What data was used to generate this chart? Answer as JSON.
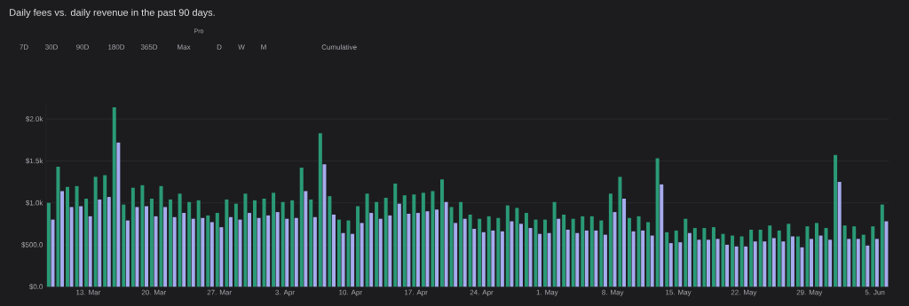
{
  "chart_data": {
    "type": "bar",
    "title": "Daily fees vs. daily revenue in the past 90 days.",
    "annotations": [
      "7D",
      "30D",
      "90D",
      "180D",
      "365D",
      "Max",
      "Pro",
      "D",
      "W",
      "M",
      "Cumulative"
    ],
    "categories": [
      null,
      null,
      null,
      null,
      "13. Mar",
      null,
      null,
      null,
      null,
      null,
      null,
      "20. Mar",
      null,
      null,
      null,
      null,
      null,
      null,
      "27. Mar",
      null,
      null,
      null,
      null,
      null,
      null,
      "3. Apr",
      null,
      null,
      null,
      null,
      null,
      null,
      "10. Apr",
      null,
      null,
      null,
      null,
      null,
      null,
      "17. Apr",
      null,
      null,
      null,
      null,
      null,
      null,
      "24. Apr",
      null,
      null,
      null,
      null,
      null,
      null,
      "1. May",
      null,
      null,
      null,
      null,
      null,
      null,
      "8. May",
      null,
      null,
      null,
      null,
      null,
      null,
      "15. May",
      null,
      null,
      null,
      null,
      null,
      null,
      "22. May",
      null,
      null,
      null,
      null,
      null,
      null,
      "29. May",
      null,
      null,
      null,
      null,
      null,
      null,
      "5. Jun",
      null
    ],
    "series": [
      {
        "color": "#2a9a76",
        "values": [
          1000,
          1430,
          1190,
          1200,
          1050,
          1310,
          1330,
          2140,
          980,
          1180,
          1210,
          1050,
          1200,
          1040,
          1110,
          1010,
          1030,
          850,
          880,
          1040,
          990,
          1110,
          1030,
          1050,
          1120,
          1010,
          1030,
          1420,
          1040,
          1830,
          1080,
          800,
          790,
          960,
          1110,
          1010,
          1060,
          1230,
          1090,
          1100,
          1120,
          1140,
          1280,
          950,
          1010,
          860,
          810,
          840,
          820,
          970,
          940,
          880,
          800,
          800,
          1010,
          860,
          810,
          840,
          840,
          790,
          1110,
          1310,
          820,
          840,
          770,
          1530,
          650,
          670,
          810,
          700,
          700,
          710,
          630,
          610,
          600,
          680,
          680,
          730,
          670,
          750,
          600,
          720,
          760,
          700,
          1570,
          730,
          720,
          620,
          720,
          980
        ]
      },
      {
        "color": "#a6abee",
        "values": [
          800,
          1140,
          950,
          960,
          840,
          1040,
          1070,
          1720,
          790,
          950,
          960,
          840,
          950,
          830,
          880,
          810,
          820,
          770,
          710,
          830,
          800,
          880,
          820,
          850,
          890,
          810,
          820,
          1140,
          830,
          1460,
          860,
          640,
          630,
          760,
          880,
          810,
          850,
          990,
          870,
          880,
          900,
          920,
          1010,
          760,
          810,
          690,
          650,
          670,
          660,
          780,
          750,
          700,
          630,
          640,
          810,
          680,
          640,
          670,
          670,
          620,
          890,
          1050,
          660,
          670,
          610,
          1220,
          520,
          530,
          640,
          560,
          560,
          570,
          500,
          480,
          480,
          540,
          540,
          580,
          540,
          600,
          470,
          570,
          610,
          560,
          1250,
          570,
          570,
          490,
          570,
          780
        ]
      }
    ],
    "ylim": [
      0,
      2200
    ],
    "yticks": [
      {
        "value": 0,
        "label": "$0.0"
      },
      {
        "value": 500,
        "label": "$500.0"
      },
      {
        "value": 1000,
        "label": "$1.0k"
      },
      {
        "value": 1500,
        "label": "$1.5k"
      },
      {
        "value": 2000,
        "label": "$2.0k"
      }
    ],
    "grid": "y"
  }
}
